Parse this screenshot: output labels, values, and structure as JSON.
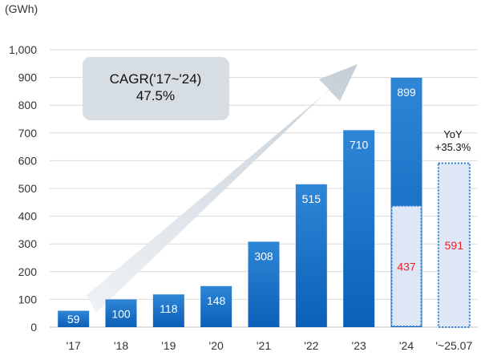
{
  "chart_data": {
    "type": "bar",
    "unit": "(GWh)",
    "y_ticks": [
      "0",
      "100",
      "200",
      "300",
      "400",
      "500",
      "600",
      "700",
      "800",
      "900",
      "1,000"
    ],
    "ylim": [
      0,
      1000
    ],
    "grid": true,
    "categories": [
      "'17",
      "'18",
      "'19",
      "'20",
      "'21",
      "'22",
      "'23",
      "'24",
      "'~25.07"
    ],
    "values": [
      59,
      100,
      118,
      148,
      308,
      515,
      710,
      899,
      591
    ],
    "value_labels": [
      "59",
      "100",
      "118",
      "148",
      "308",
      "515",
      "710",
      "899",
      "591"
    ],
    "partial_period": {
      "category": "'24",
      "value": 437,
      "label": "437",
      "style": "dashed light box"
    },
    "projection_bar_index": 8,
    "annotations": {
      "cagr_title": "CAGR('17~'24)",
      "cagr_value": "47.5%",
      "yoy_title": "YoY",
      "yoy_value": "+35.3%"
    },
    "colors": {
      "bar_top": "#2f86d6",
      "bar_bottom": "#0b5fb8",
      "dashed_fill": "#dde7f5",
      "dashed_stroke": "#2a78cf",
      "label_white": "#ffffff",
      "label_red": "#e8202a",
      "grid": "#d9d9d9",
      "arrow": "#c9d3dc",
      "cagr_box": "#d6dde3"
    }
  }
}
